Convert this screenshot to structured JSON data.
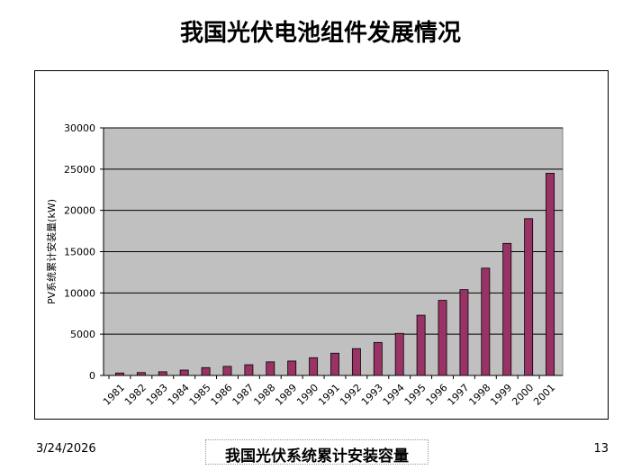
{
  "slide": {
    "title": "我国光伏电池组件发展情况",
    "date": "3/24/2026",
    "caption": "我国光伏系统累计安装容量",
    "page_number": "13"
  },
  "colors": {
    "plot_background": "#c0c0c0",
    "bar": "#993366",
    "gridline": "#000000"
  },
  "chart_data": {
    "type": "bar",
    "title": "",
    "xlabel": "",
    "ylabel": "PV系统累计安装量(kW)",
    "ylim": [
      0,
      30000
    ],
    "yticks": [
      0,
      5000,
      10000,
      15000,
      20000,
      25000,
      30000
    ],
    "grid": true,
    "legend": "none",
    "categories": [
      "1981",
      "1982",
      "1983",
      "1984",
      "1985",
      "1986",
      "1987",
      "1988",
      "1989",
      "1990",
      "1991",
      "1992",
      "1993",
      "1994",
      "1995",
      "1996",
      "1997",
      "1998",
      "1999",
      "2000",
      "2001"
    ],
    "series": [
      {
        "values": [
          300,
          350,
          450,
          650,
          950,
          1100,
          1300,
          1650,
          1750,
          2150,
          2700,
          3250,
          4000,
          5100,
          7300,
          9100,
          10400,
          13000,
          16000,
          19000,
          24500
        ]
      }
    ]
  }
}
